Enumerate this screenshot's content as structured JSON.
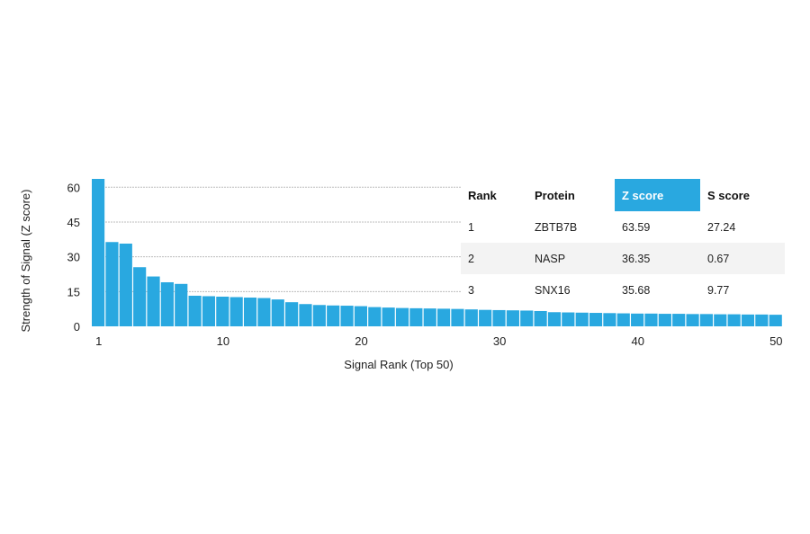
{
  "chart_data": {
    "type": "bar",
    "title": "",
    "xlabel": "Signal Rank (Top 50)",
    "ylabel": "Strength of Signal (Z score)",
    "ylim": [
      0,
      63.59
    ],
    "yticks": [
      0,
      15,
      30,
      45,
      60
    ],
    "xticks": [
      1,
      10,
      20,
      30,
      40,
      50
    ],
    "grid": "horizontal dashed",
    "bar_color": "#29a8e0",
    "x": [
      1,
      2,
      3,
      4,
      5,
      6,
      7,
      8,
      9,
      10,
      11,
      12,
      13,
      14,
      15,
      16,
      17,
      18,
      19,
      20,
      21,
      22,
      23,
      24,
      25,
      26,
      27,
      28,
      29,
      30,
      31,
      32,
      33,
      34,
      35,
      36,
      37,
      38,
      39,
      40,
      41,
      42,
      43,
      44,
      45,
      46,
      47,
      48,
      49,
      50
    ],
    "values": [
      63.59,
      36.35,
      35.68,
      25.5,
      21.5,
      19.0,
      18.3,
      13.2,
      13.0,
      12.8,
      12.6,
      12.4,
      12.2,
      11.6,
      10.4,
      9.6,
      9.2,
      9.0,
      8.9,
      8.7,
      8.3,
      8.1,
      7.9,
      7.8,
      7.7,
      7.6,
      7.5,
      7.3,
      7.1,
      7.0,
      6.9,
      6.8,
      6.6,
      6.1,
      6.0,
      5.9,
      5.8,
      5.7,
      5.6,
      5.5,
      5.5,
      5.4,
      5.4,
      5.3,
      5.3,
      5.2,
      5.2,
      5.1,
      5.1,
      5.0
    ]
  },
  "table": {
    "header_highlight_color": "#29a8e0",
    "stripe_color": "#f3f3f3",
    "headers": [
      "Rank",
      "Protein",
      "Z score",
      "S score"
    ],
    "rows": [
      [
        "1",
        "ZBTB7B",
        "63.59",
        "27.24"
      ],
      [
        "2",
        "NASP",
        "36.35",
        "0.67"
      ],
      [
        "3",
        "SNX16",
        "35.68",
        "9.77"
      ]
    ]
  }
}
